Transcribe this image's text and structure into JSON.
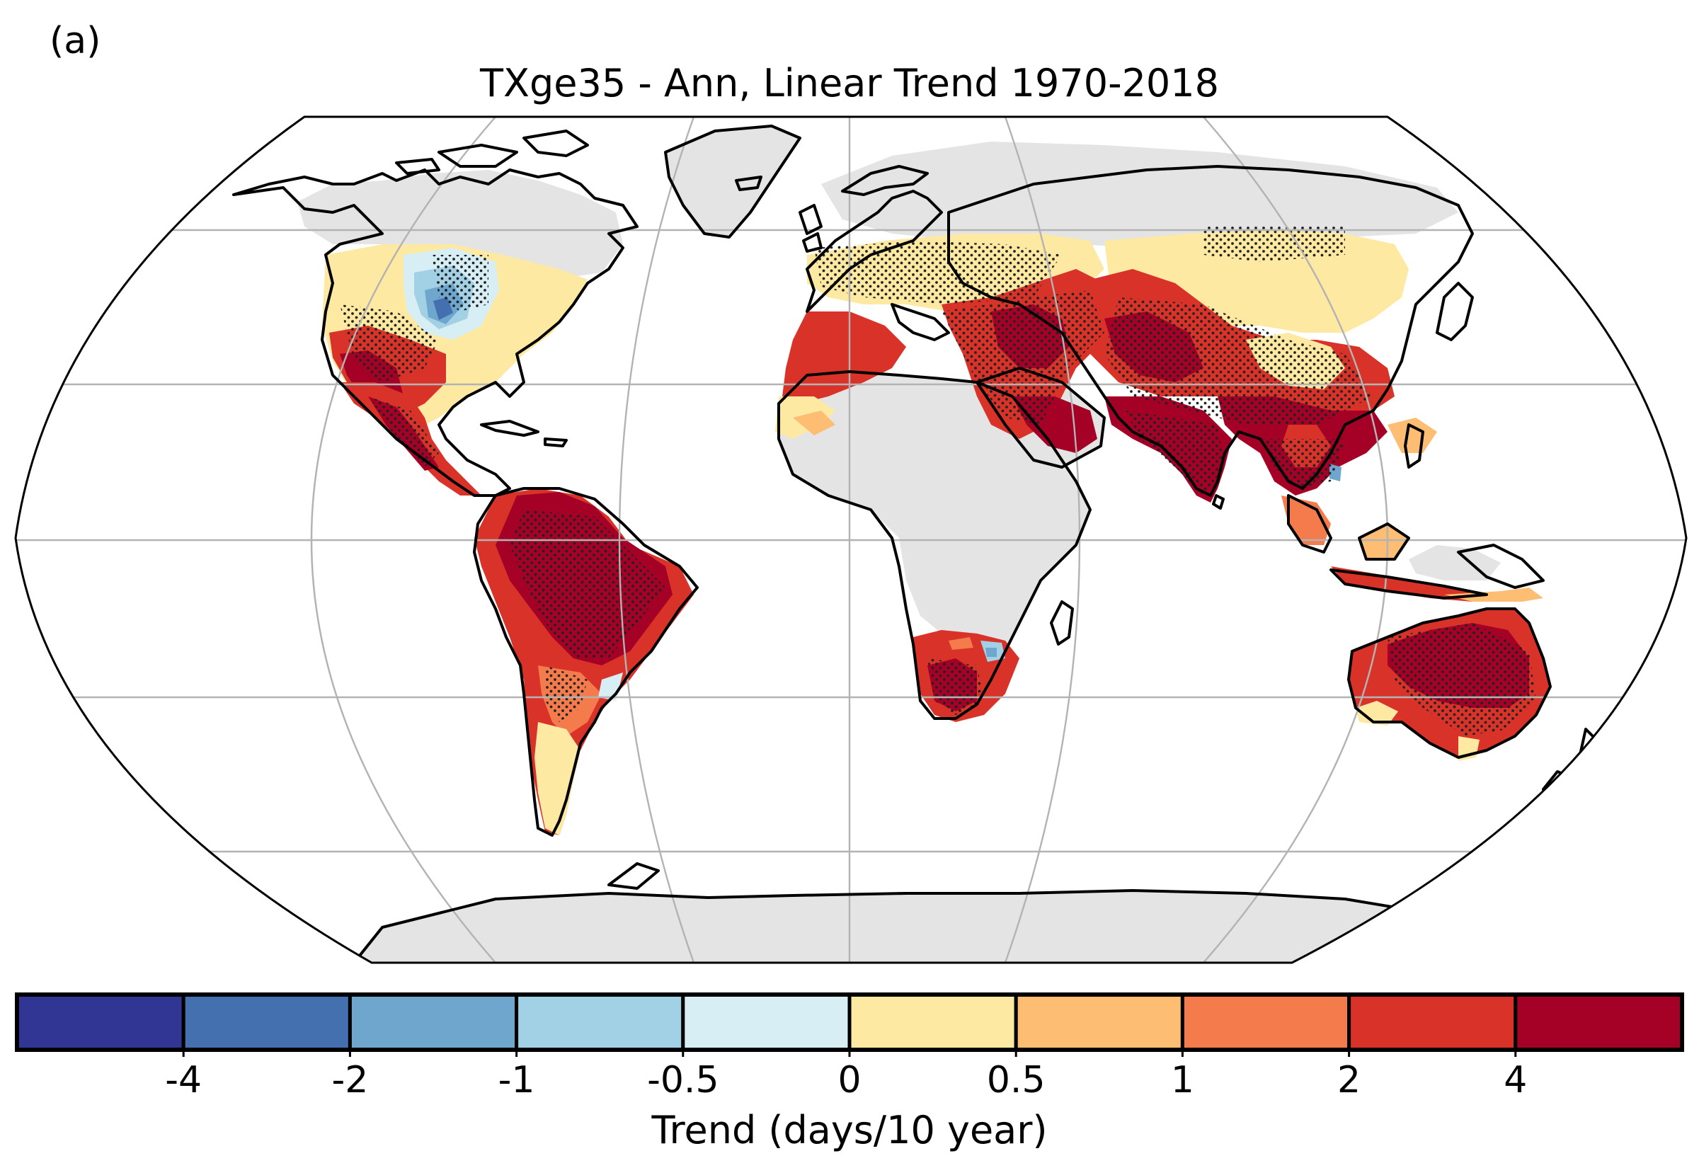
{
  "panel_label": "(a)",
  "title": "TXge35 - Ann, Linear Trend 1970-2018",
  "colors": {
    "land_no_data": "#e4e4e4",
    "coastline": "#000000",
    "graticule": "#b3b3b3",
    "stipple": "#222222"
  },
  "legend": {
    "label": "Trend (days/10 year)",
    "tick_labels": [
      "-4",
      "-2",
      "-1",
      "-0.5",
      "0",
      "0.5",
      "1",
      "2",
      "4"
    ],
    "bins": [
      {
        "range": "< -4",
        "color": "#313695"
      },
      {
        "range": "-4 to -2",
        "color": "#4470b0"
      },
      {
        "range": "-2 to -1",
        "color": "#6ea6cd"
      },
      {
        "range": "-1 to -0.5",
        "color": "#a2d0e4"
      },
      {
        "range": "-0.5 to 0",
        "color": "#d8eef5"
      },
      {
        "range": "0 to 0.5",
        "color": "#fde9a2"
      },
      {
        "range": "0.5 to 1",
        "color": "#fdbd72"
      },
      {
        "range": "1 to 2",
        "color": "#f47b4b"
      },
      {
        "range": "2 to 4",
        "color": "#d93329"
      },
      {
        "range": "> 4",
        "color": "#a50026"
      }
    ]
  }
}
